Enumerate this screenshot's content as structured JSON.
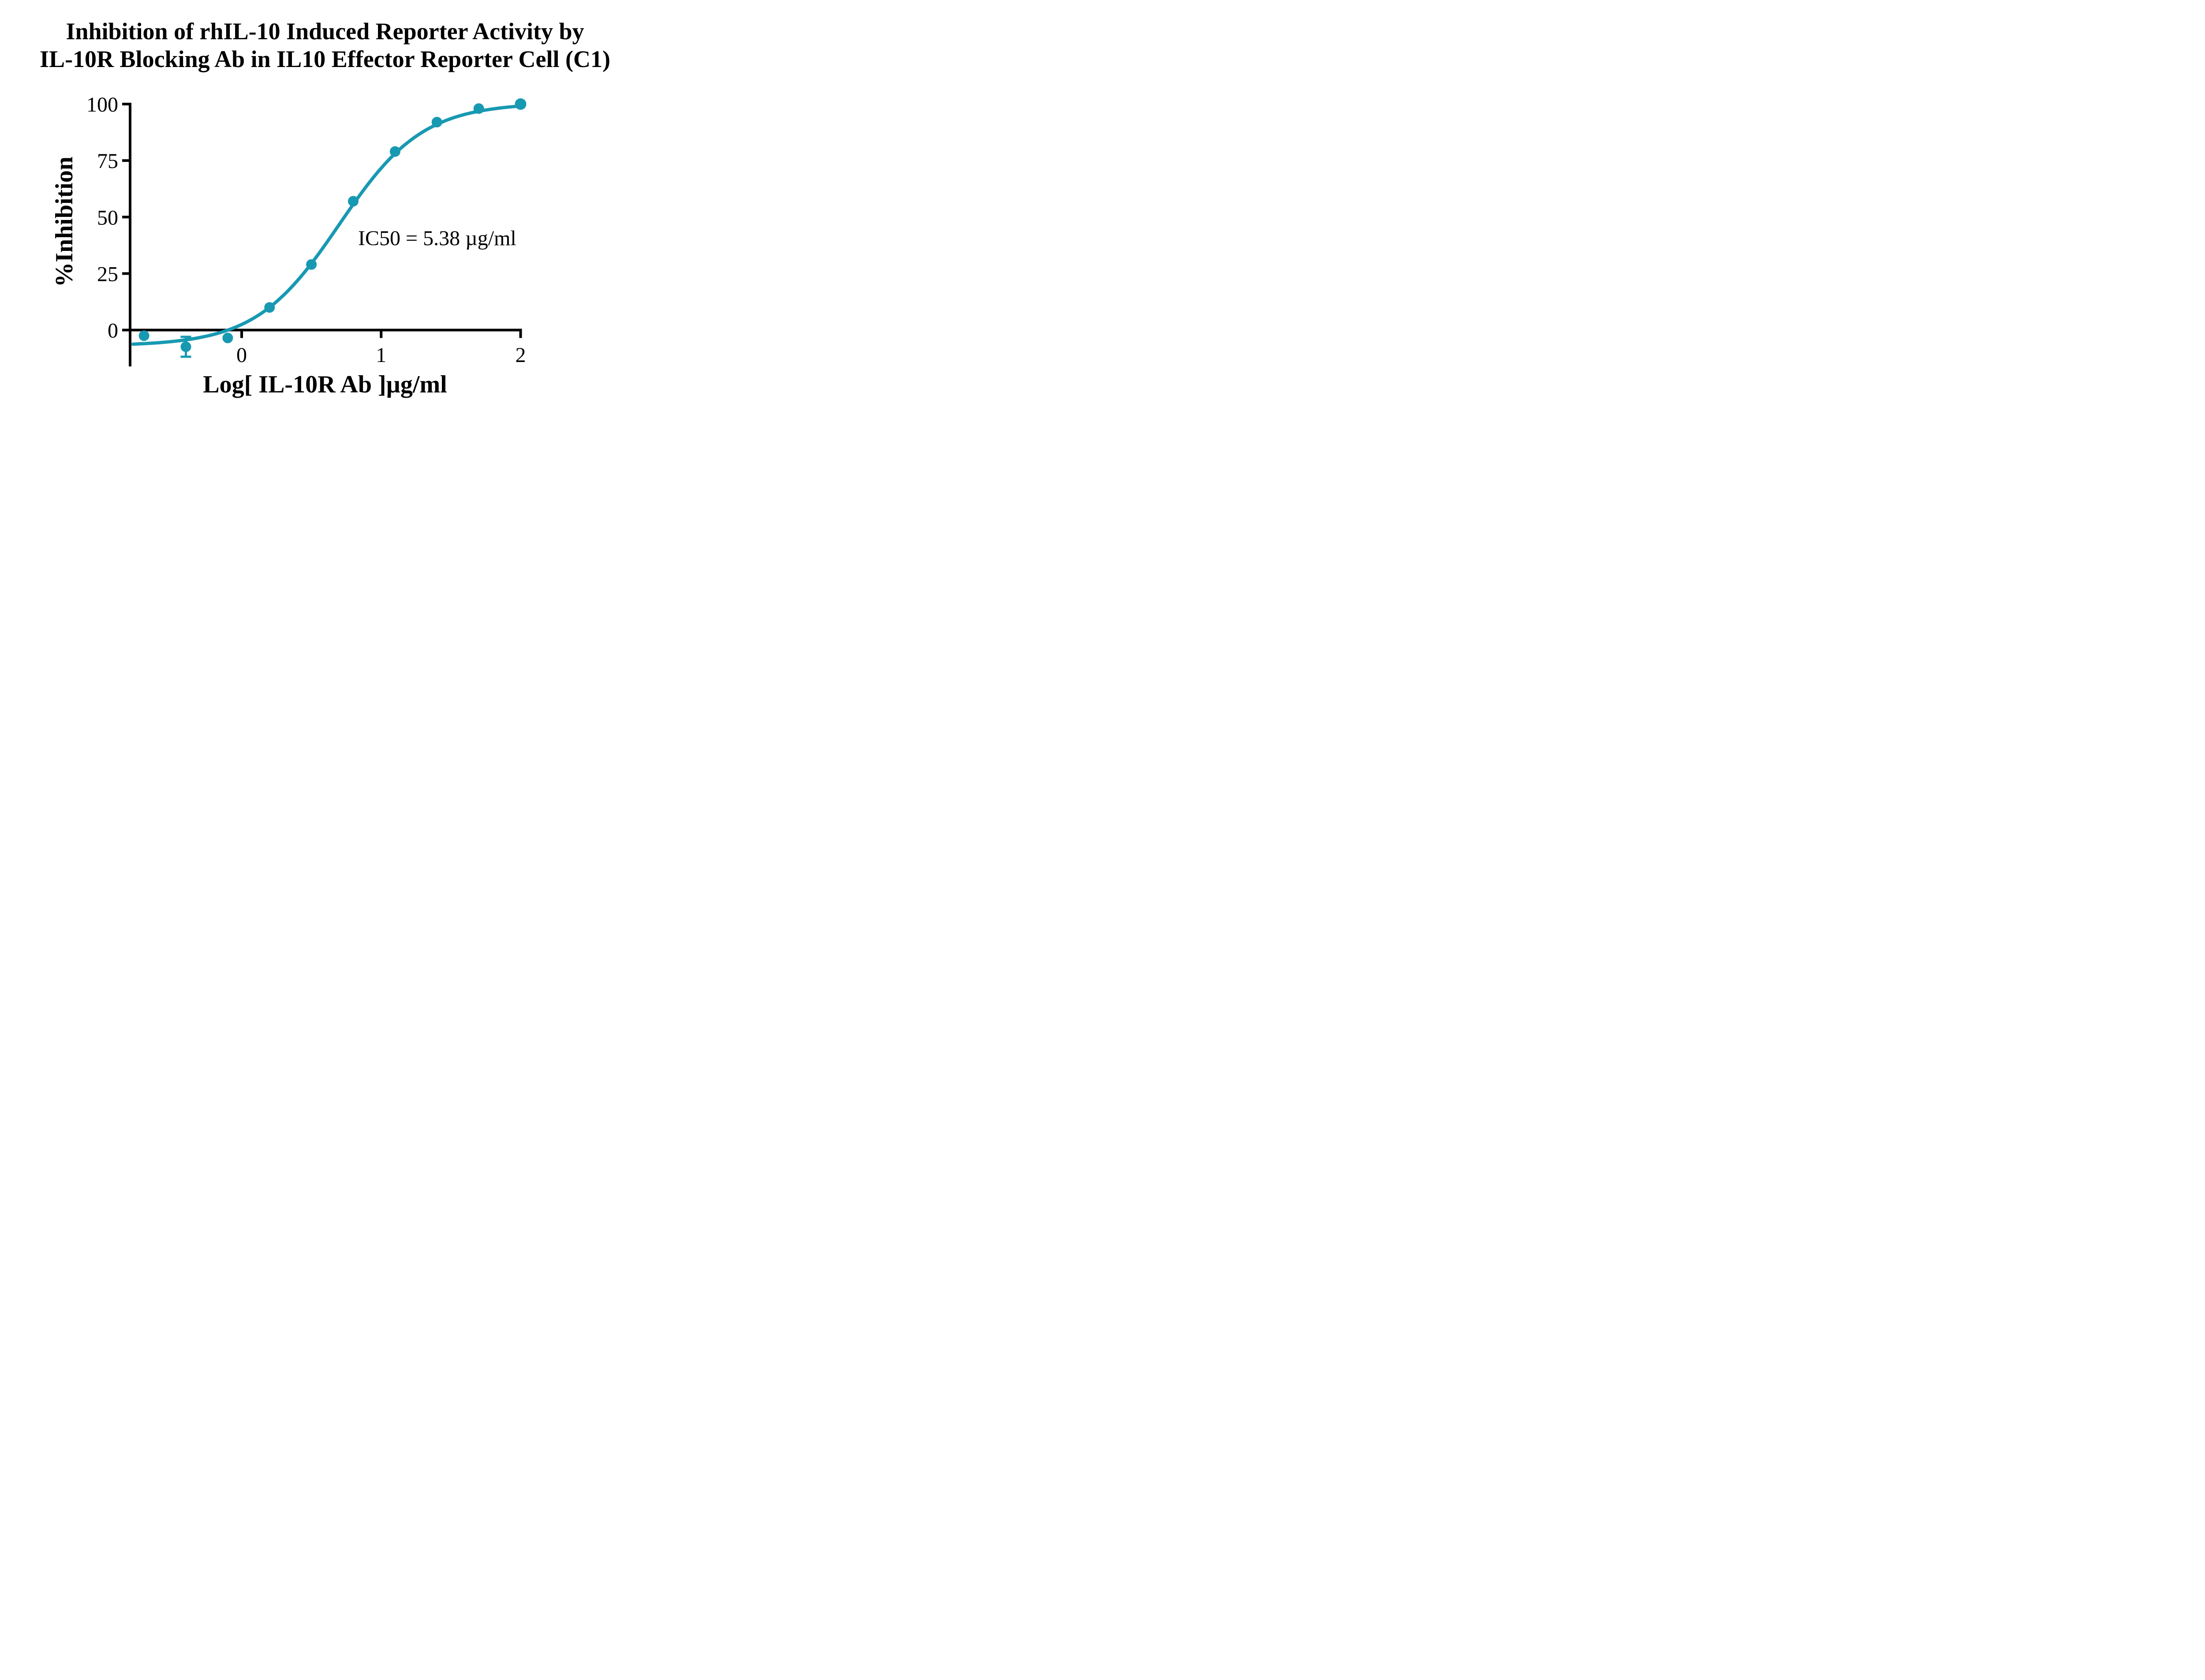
{
  "title": {
    "line1": "Inhibition of rhIL-10 Induced Reporter Activity by",
    "line2": "IL-10R Blocking Ab in IL10 Effector Reporter Cell (C1)"
  },
  "chart_data": {
    "type": "scatter",
    "title": "Inhibition of rhIL-10 Induced Reporter Activity by IL-10R Blocking Ab in IL10 Effector Reporter Cell (C1)",
    "xlabel": "Log[ IL-10R Ab ]µg/ml",
    "ylabel": "%Inhibition",
    "annotation": "IC50 = 5.38 µg/ml",
    "x_ticks": [
      0,
      1,
      2
    ],
    "y_ticks": [
      100,
      75,
      50,
      25,
      0
    ],
    "xlim": [
      -0.8,
      2.0
    ],
    "ylim": [
      0,
      100
    ],
    "grid": false,
    "legend_position": "none",
    "accent_color": "#1899b2",
    "axis_color": "#000000",
    "points": [
      {
        "x": -0.7,
        "y": -2.5
      },
      {
        "x": -0.4,
        "y": -7.4,
        "err": 4.4
      },
      {
        "x": -0.1,
        "y": -3.5
      },
      {
        "x": 0.2,
        "y": 10
      },
      {
        "x": 0.5,
        "y": 29
      },
      {
        "x": 0.8,
        "y": 57
      },
      {
        "x": 1.1,
        "y": 79
      },
      {
        "x": 1.4,
        "y": 92
      },
      {
        "x": 1.7,
        "y": 98
      },
      {
        "x": 2.0,
        "y": 100
      }
    ],
    "curve_fit": {
      "bottom": -7,
      "top": 100.5,
      "log_ic50": 0.7,
      "hill": 1.45
    },
    "curve_x_range": [
      -0.78,
      2.0
    ]
  }
}
